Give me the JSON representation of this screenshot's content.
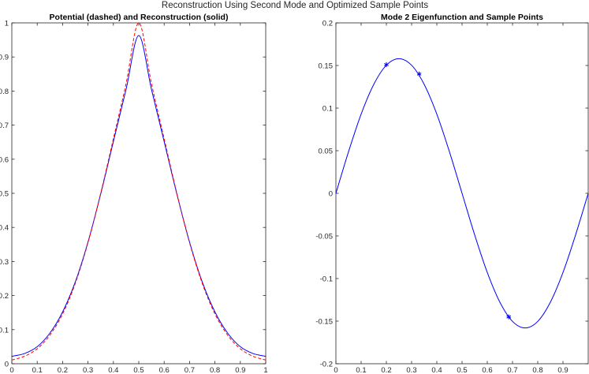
{
  "figure": {
    "suptitle": "Reconstruction Using Second Mode and Optimized Sample Points"
  },
  "chart_data": [
    {
      "type": "line",
      "title": "Potential (dashed) and Reconstruction (solid)",
      "xlabel": "",
      "ylabel": "",
      "xlim": [
        0,
        1
      ],
      "ylim": [
        0,
        1
      ],
      "xticks": [
        0,
        0.1,
        0.2,
        0.3,
        0.4,
        0.5,
        0.6,
        0.7,
        0.8,
        0.9,
        1
      ],
      "xtick_labels": [
        "0",
        "0.1",
        "0.2",
        "0.3",
        "0.4",
        "0.5",
        "0.6",
        "0.7",
        "0.8",
        "0.9",
        "1"
      ],
      "yticks": [
        0,
        0.1,
        0.2,
        0.3,
        0.4,
        0.5,
        0.6,
        0.7,
        0.8,
        0.9,
        1
      ],
      "ytick_labels": [
        "0",
        "0.1",
        "0.2",
        "0.3",
        "0.4",
        "0.5",
        "0.6",
        "0.7",
        "0.8",
        "0.9",
        "1"
      ],
      "grid": false,
      "legend": "none",
      "x": [
        0,
        0.05,
        0.1,
        0.15,
        0.2,
        0.25,
        0.3,
        0.35,
        0.4,
        0.45,
        0.5,
        0.55,
        0.6,
        0.65,
        0.7,
        0.75,
        0.8,
        0.85,
        0.9,
        0.95,
        1
      ],
      "series": [
        {
          "style": "dashed",
          "color": "#ff0000",
          "values": [
            0.011,
            0.022,
            0.044,
            0.084,
            0.146,
            0.236,
            0.355,
            0.5,
            0.66,
            0.822,
            1.0,
            0.822,
            0.66,
            0.5,
            0.355,
            0.236,
            0.146,
            0.084,
            0.044,
            0.022,
            0.011
          ]
        },
        {
          "style": "solid",
          "color": "#0000ff",
          "values": [
            0.022,
            0.03,
            0.05,
            0.09,
            0.152,
            0.24,
            0.357,
            0.498,
            0.652,
            0.805,
            0.963,
            0.805,
            0.652,
            0.498,
            0.357,
            0.24,
            0.152,
            0.09,
            0.05,
            0.03,
            0.022
          ]
        }
      ]
    },
    {
      "type": "line",
      "title": "Mode 2 Eigenfunction and Sample Points",
      "xlabel": "",
      "ylabel": "",
      "xlim": [
        0,
        1
      ],
      "ylim": [
        -0.2,
        0.2
      ],
      "xticks": [
        0,
        0.1,
        0.2,
        0.3,
        0.4,
        0.5,
        0.6,
        0.7,
        0.8,
        0.9
      ],
      "xtick_labels": [
        "0",
        "0.1",
        "0.2",
        "0.3",
        "0.4",
        "0.5",
        "0.6",
        "0.7",
        "0.8",
        "0.9"
      ],
      "yticks": [
        -0.2,
        -0.15,
        -0.1,
        -0.05,
        0,
        0.05,
        0.1,
        0.15,
        0.2
      ],
      "ytick_labels": [
        "-0.2",
        "-0.15",
        "-0.1",
        "-0.05",
        "0",
        "0.05",
        "0.1",
        "0.15",
        "0.2"
      ],
      "grid": false,
      "legend": "none",
      "curve": {
        "style": "solid",
        "color": "#0000ff",
        "amplitude": 0.158,
        "x": [
          0,
          0.05,
          0.1,
          0.15,
          0.2,
          0.25,
          0.3,
          0.35,
          0.4,
          0.45,
          0.5,
          0.55,
          0.6,
          0.65,
          0.7,
          0.75,
          0.8,
          0.85,
          0.9,
          0.95,
          1
        ],
        "values": [
          0,
          0.0488,
          0.0929,
          0.1278,
          0.1503,
          0.158,
          0.1503,
          0.1278,
          0.0929,
          0.0488,
          0,
          -0.0488,
          -0.0929,
          -0.1278,
          -0.1503,
          -0.158,
          -0.1503,
          -0.1278,
          -0.0929,
          -0.0488,
          0
        ]
      },
      "sample_points": {
        "marker": "*",
        "color": "#0000ff",
        "x": [
          0.2,
          0.33,
          0.685
        ],
        "y": [
          0.151,
          0.14,
          -0.145
        ]
      }
    }
  ]
}
